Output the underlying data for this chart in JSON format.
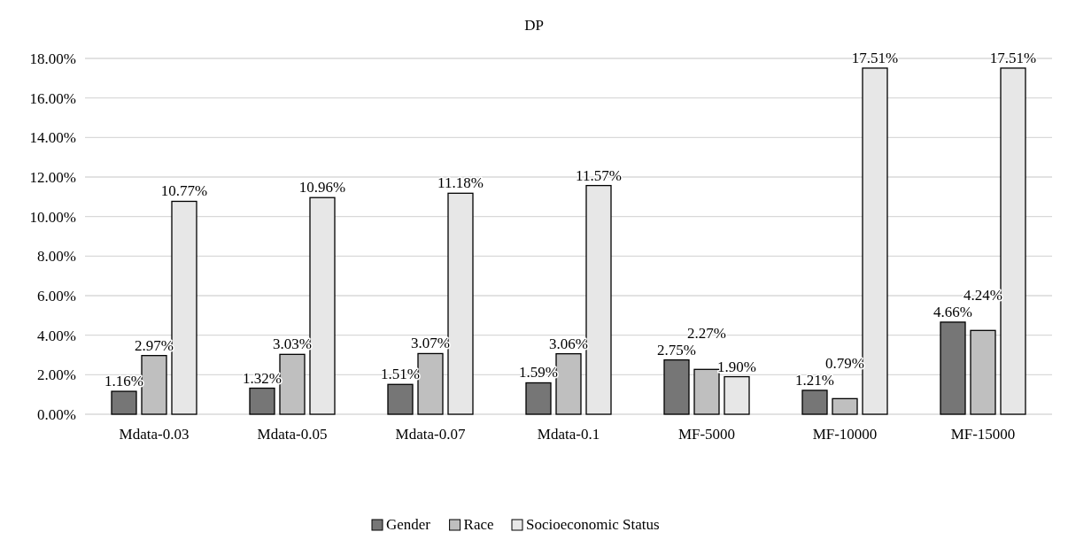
{
  "chart_data": {
    "type": "bar",
    "title": "DP",
    "categories": [
      "Mdata-0.03",
      "Mdata-0.05",
      "Mdata-0.07",
      "Mdata-0.1",
      "MF-5000",
      "MF-10000",
      "MF-15000"
    ],
    "series": [
      {
        "name": "Gender",
        "color": "#767676",
        "values": [
          1.16,
          1.32,
          1.51,
          1.59,
          2.75,
          1.21,
          4.66
        ],
        "value_labels": [
          "1.16%",
          "1.32%",
          "1.51%",
          "1.59%",
          "2.75%",
          "1.21%",
          "4.66%"
        ]
      },
      {
        "name": "Race",
        "color": "#bfbfbf",
        "values": [
          2.97,
          3.03,
          3.07,
          3.06,
          2.27,
          0.79,
          4.24
        ],
        "value_labels": [
          "2.97%",
          "3.03%",
          "3.07%",
          "3.06%",
          "2.27%",
          "0.79%",
          "4.24%"
        ]
      },
      {
        "name": "Socioeconomic Status",
        "color": "#e7e7e7",
        "values": [
          10.77,
          10.96,
          11.18,
          11.57,
          1.9,
          17.51,
          17.51
        ],
        "value_labels": [
          "10.77%",
          "10.96%",
          "11.18%",
          "11.57%",
          "1.90%",
          "17.51%",
          "17.51%"
        ]
      }
    ],
    "ylim": [
      0,
      18
    ],
    "yticks": [
      {
        "value": 0,
        "label": "0.00%"
      },
      {
        "value": 2,
        "label": "2.00%"
      },
      {
        "value": 4,
        "label": "4.00%"
      },
      {
        "value": 6,
        "label": "6.00%"
      },
      {
        "value": 8,
        "label": "8.00%"
      },
      {
        "value": 10,
        "label": "10.00%"
      },
      {
        "value": 12,
        "label": "12.00%"
      },
      {
        "value": 14,
        "label": "14.00%"
      },
      {
        "value": 16,
        "label": "16.00%"
      },
      {
        "value": 18,
        "label": "18.00%"
      }
    ],
    "grid": "y",
    "legend": "bottom"
  }
}
